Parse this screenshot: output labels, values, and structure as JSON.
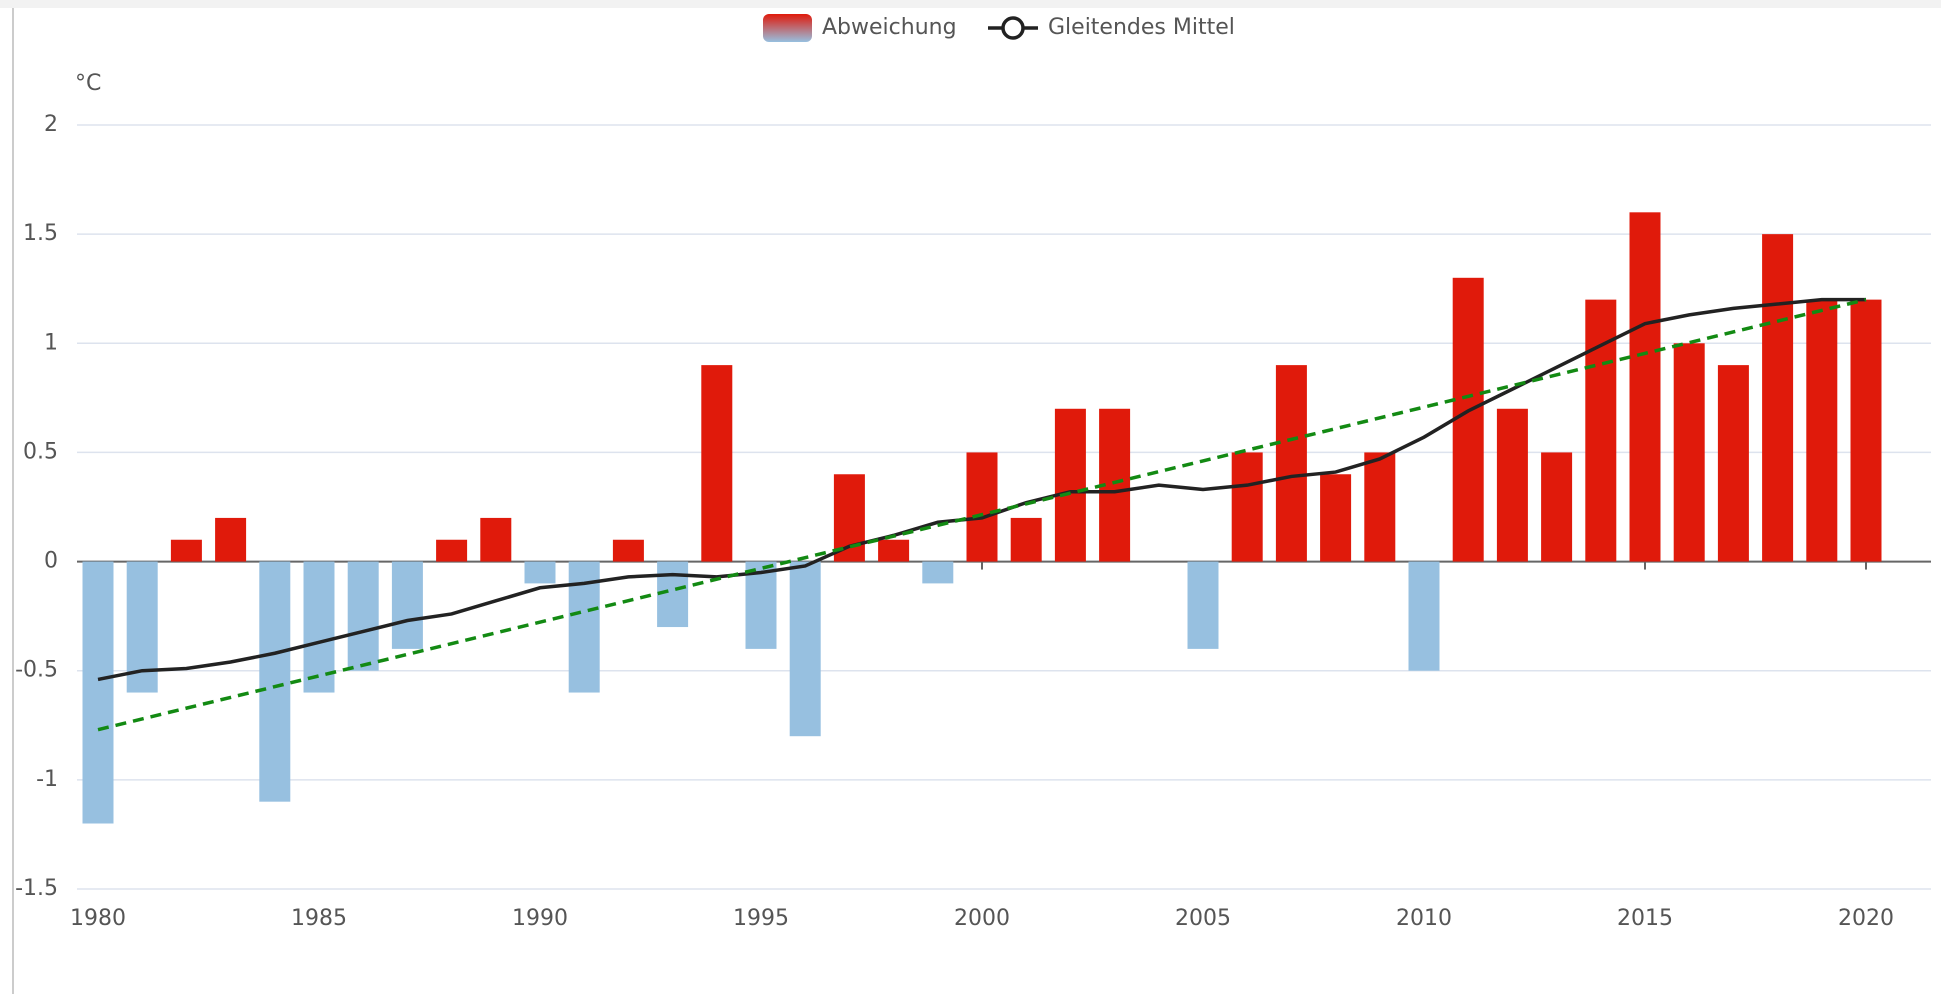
{
  "chart_data": {
    "type": "bar",
    "y_label": "°C",
    "x": [
      1980,
      1981,
      1982,
      1983,
      1984,
      1985,
      1986,
      1987,
      1988,
      1989,
      1990,
      1991,
      1992,
      1993,
      1994,
      1995,
      1996,
      1997,
      1998,
      1999,
      2000,
      2001,
      2002,
      2003,
      2004,
      2005,
      2006,
      2007,
      2008,
      2009,
      2010,
      2011,
      2012,
      2013,
      2014,
      2015,
      2016,
      2017,
      2018,
      2019,
      2020
    ],
    "series": [
      {
        "name": "Abweichung",
        "type": "bar",
        "color": "#e01a0b",
        "negative_color": "#97c0e0",
        "values": [
          -1.2,
          -0.6,
          0.1,
          0.2,
          -1.1,
          -0.6,
          -0.5,
          -0.4,
          0.1,
          0.2,
          -0.1,
          -0.6,
          0.1,
          -0.3,
          0.9,
          -0.4,
          -0.8,
          0.4,
          0.1,
          -0.1,
          0.5,
          0.2,
          0.7,
          0.7,
          0,
          -0.4,
          0.5,
          0.9,
          0.4,
          0.5,
          -0.5,
          1.3,
          0.7,
          0.5,
          1.2,
          1.6,
          1.0,
          0.9,
          1.5,
          1.2,
          1.2
        ]
      },
      {
        "name": "Gleitendes Mittel",
        "type": "line",
        "color": "#222222",
        "values": [
          -0.54,
          -0.5,
          -0.49,
          -0.46,
          -0.42,
          -0.37,
          -0.32,
          -0.27,
          -0.24,
          -0.18,
          -0.12,
          -0.1,
          -0.07,
          -0.06,
          -0.07,
          -0.05,
          -0.02,
          0.07,
          0.12,
          0.18,
          0.2,
          0.27,
          0.32,
          0.32,
          0.35,
          0.33,
          0.35,
          0.39,
          0.41,
          0.47,
          0.57,
          0.69,
          0.79,
          0.89,
          0.99,
          1.09,
          1.13,
          1.16,
          1.18,
          1.2,
          1.2
        ]
      }
    ],
    "trend": {
      "x": [
        1980,
        2020
      ],
      "values": [
        -0.77,
        1.2
      ],
      "color": "#138a13"
    },
    "xlim": [
      1980,
      2020
    ],
    "xticks": [
      1980,
      1985,
      1990,
      1995,
      2000,
      2005,
      2010,
      2015,
      2020
    ],
    "ylim": [
      -1.5,
      2
    ],
    "yticks": [
      -1.5,
      -1,
      -0.5,
      0,
      0.5,
      1,
      1.5,
      2
    ],
    "grid": true,
    "legend": "top"
  }
}
